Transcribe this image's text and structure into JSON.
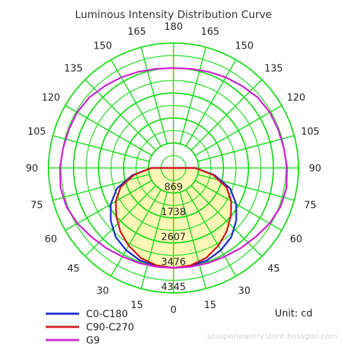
{
  "chart_data": {
    "type": "polar",
    "title": "Luminous Intensity Distribution Curve",
    "unit": "Unit: cd",
    "angle_labels": [
      {
        "angle": 180,
        "text": "180",
        "side": "top"
      },
      {
        "angle": 165,
        "text": "165",
        "side": "left"
      },
      {
        "angle": 150,
        "text": "150",
        "side": "left"
      },
      {
        "angle": 135,
        "text": "135",
        "side": "left"
      },
      {
        "angle": 120,
        "text": "120",
        "side": "left"
      },
      {
        "angle": 105,
        "text": "105",
        "side": "left"
      },
      {
        "angle": 90,
        "text": "90",
        "side": "left"
      },
      {
        "angle": 75,
        "text": "75",
        "side": "left"
      },
      {
        "angle": 60,
        "text": "60",
        "side": "left"
      },
      {
        "angle": 45,
        "text": "45",
        "side": "left"
      },
      {
        "angle": 30,
        "text": "30",
        "side": "left"
      },
      {
        "angle": 15,
        "text": "15",
        "side": "left"
      },
      {
        "angle": 0,
        "text": "0",
        "side": "bottom"
      },
      {
        "angle": 15,
        "text": "15",
        "side": "right"
      },
      {
        "angle": 30,
        "text": "30",
        "side": "right"
      },
      {
        "angle": 45,
        "text": "45",
        "side": "right"
      },
      {
        "angle": 60,
        "text": "60",
        "side": "right"
      },
      {
        "angle": 75,
        "text": "75",
        "side": "right"
      },
      {
        "angle": 90,
        "text": "90",
        "side": "right"
      },
      {
        "angle": 105,
        "text": "105",
        "side": "right"
      },
      {
        "angle": 120,
        "text": "120",
        "side": "right"
      },
      {
        "angle": 135,
        "text": "135",
        "side": "right"
      },
      {
        "angle": 150,
        "text": "150",
        "side": "right"
      },
      {
        "angle": 165,
        "text": "165",
        "side": "right"
      }
    ],
    "radial_ticks": [
      869,
      1738,
      2607,
      3476,
      4345
    ],
    "rmax": 4345,
    "grid": true,
    "grid_color": "#22dd22",
    "legend_position": "bottom-left",
    "series": [
      {
        "name": "C0-C180",
        "color": "#1a2bd0",
        "fill": false,
        "angles": [
          0,
          10,
          20,
          30,
          40,
          50,
          60,
          70,
          80,
          90,
          100,
          110,
          120,
          130,
          140,
          150,
          160,
          170,
          180
        ],
        "values": [
          3476,
          3460,
          3420,
          3300,
          3130,
          2850,
          2520,
          2100,
          1450,
          760,
          0,
          0,
          0,
          0,
          0,
          0,
          0,
          0,
          0
        ]
      },
      {
        "name": "C90-C270",
        "color": "#d01818",
        "fill": true,
        "fill_color": "#fff6a8",
        "angles": [
          0,
          10,
          20,
          30,
          40,
          50,
          60,
          70,
          80,
          90,
          100,
          110,
          120,
          130,
          140,
          150,
          160,
          170,
          180
        ],
        "values": [
          3476,
          3440,
          3330,
          3120,
          2880,
          2600,
          2320,
          1960,
          1400,
          760,
          0,
          0,
          0,
          0,
          0,
          0,
          0,
          0,
          0
        ]
      },
      {
        "name": "G9",
        "color": "#d020d0",
        "fill": false,
        "angles": [
          0,
          10,
          20,
          30,
          40,
          50,
          60,
          70,
          80,
          90,
          100,
          110,
          120,
          130,
          140,
          150,
          160,
          170,
          180
        ],
        "values": [
          3476,
          3490,
          3520,
          3560,
          3640,
          3730,
          3860,
          3960,
          3990,
          3950,
          3900,
          3880,
          3870,
          3820,
          3720,
          3640,
          3560,
          3500,
          3476
        ]
      }
    ]
  },
  "watermark": "szsuperjewelry.store.bossgoo.com"
}
